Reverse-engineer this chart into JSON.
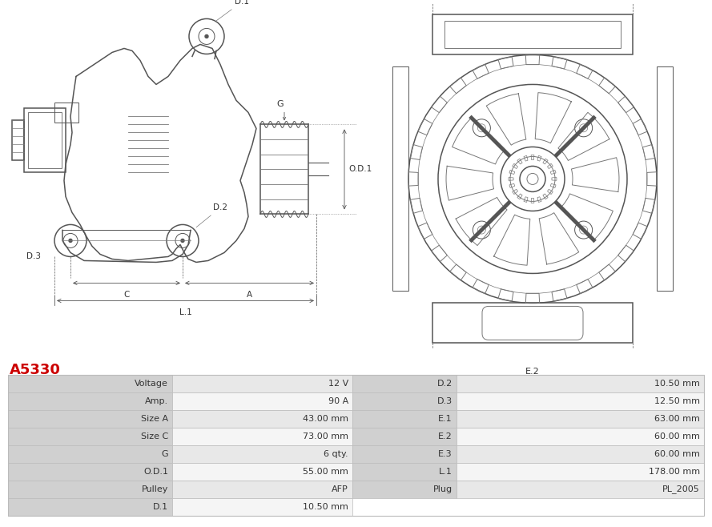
{
  "title": "A5330",
  "title_color": "#cc0000",
  "bg_color": "#ffffff",
  "line_color": "#555555",
  "line_color2": "#777777",
  "table_rows": [
    [
      "Voltage",
      "12 V",
      "D.2",
      "10.50 mm"
    ],
    [
      "Amp.",
      "90 A",
      "D.3",
      "12.50 mm"
    ],
    [
      "Size A",
      "43.00 mm",
      "E.1",
      "63.00 mm"
    ],
    [
      "Size C",
      "73.00 mm",
      "E.2",
      "60.00 mm"
    ],
    [
      "G",
      "6 qty.",
      "E.3",
      "60.00 mm"
    ],
    [
      "O.D.1",
      "55.00 mm",
      "L.1",
      "178.00 mm"
    ],
    [
      "Pulley",
      "AFP",
      "Plug",
      "PL_2005"
    ],
    [
      "D.1",
      "10.50 mm",
      "",
      ""
    ]
  ],
  "header_bg": "#d0d0d0",
  "row_bg_odd": "#e8e8e8",
  "row_bg_even": "#f5f5f5",
  "table_text_color": "#333333",
  "border_color": "#bbbbbb"
}
